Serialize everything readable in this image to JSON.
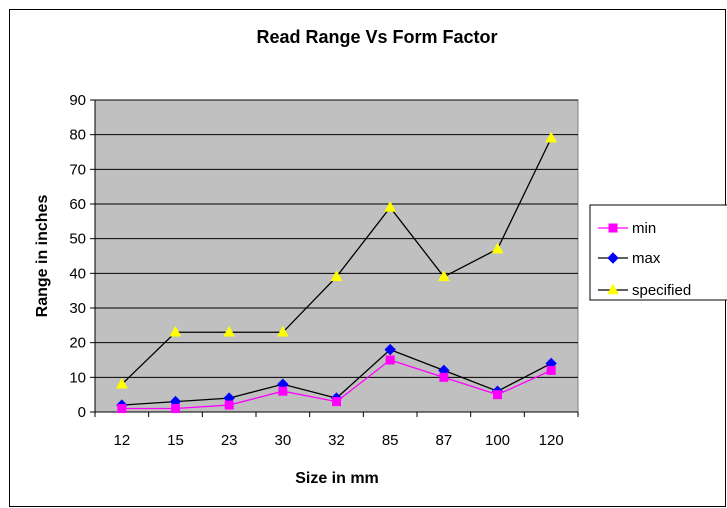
{
  "chart_data": {
    "type": "line",
    "title": "Read Range Vs Form Factor",
    "xlabel": "Size in mm",
    "ylabel": "Range in inches",
    "categories": [
      "12",
      "15",
      "23",
      "30",
      "32",
      "85",
      "87",
      "100",
      "120"
    ],
    "ylim": [
      0,
      90
    ],
    "yticks": [
      0,
      10,
      20,
      30,
      40,
      50,
      60,
      70,
      80,
      90
    ],
    "grid": "horizontal",
    "plot_background": "#c0c0c0",
    "legend_position": "right",
    "series": [
      {
        "name": "min",
        "values": [
          1,
          1,
          2,
          6,
          3,
          15,
          10,
          5,
          12
        ],
        "color": "#ff00ff",
        "line_color": "#ff00ff",
        "marker": "square"
      },
      {
        "name": "max",
        "values": [
          2,
          3,
          4,
          8,
          4,
          18,
          12,
          6,
          14
        ],
        "color": "#0000ff",
        "line_color": "#000000",
        "marker": "diamond"
      },
      {
        "name": "specified",
        "values": [
          8,
          23,
          23,
          23,
          39,
          59,
          39,
          47,
          79
        ],
        "color": "#ffff00",
        "line_color": "#000000",
        "marker": "triangle"
      }
    ]
  }
}
